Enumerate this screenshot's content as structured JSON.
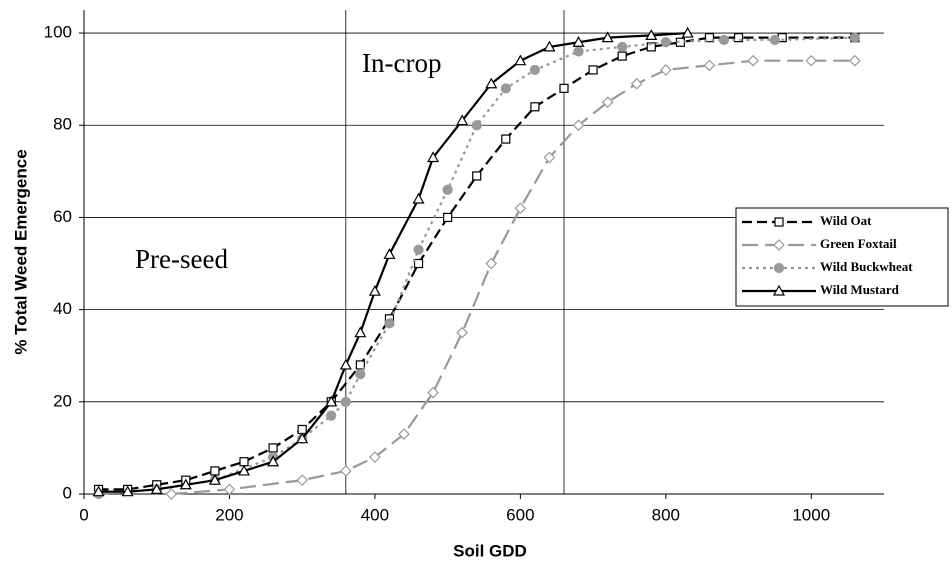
{
  "chart_data": {
    "type": "line",
    "xlabel": "Soil GDD",
    "ylabel": "% Total Weed Emergence",
    "annotations": [
      "In-crop",
      "Pre-seed"
    ],
    "vlines": [
      360,
      660
    ],
    "xlim": [
      0,
      1100
    ],
    "ylim": [
      0,
      105
    ],
    "xticks": [
      0,
      200,
      400,
      600,
      800,
      1000
    ],
    "yticks": [
      0,
      20,
      40,
      60,
      80,
      100
    ],
    "grid": true,
    "legend": "right",
    "series": [
      {
        "name": "Wild Oat",
        "color": "#000000",
        "dash": "dashed",
        "marker": "square",
        "x": [
          20,
          60,
          100,
          140,
          180,
          220,
          260,
          300,
          340,
          380,
          420,
          460,
          500,
          540,
          580,
          620,
          660,
          700,
          740,
          780,
          820,
          860,
          900,
          960,
          1060
        ],
        "values": [
          1,
          1,
          2,
          3,
          5,
          7,
          10,
          14,
          20,
          28,
          38,
          50,
          60,
          69,
          77,
          84,
          88,
          92,
          95,
          97,
          98,
          99,
          99,
          99,
          99
        ]
      },
      {
        "name": "Green Foxtail",
        "color": "#999999",
        "dash": "longdash",
        "marker": "diamond",
        "x": [
          120,
          200,
          300,
          360,
          400,
          440,
          480,
          520,
          560,
          600,
          640,
          680,
          720,
          760,
          800,
          860,
          920,
          1000,
          1060
        ],
        "values": [
          0,
          1,
          3,
          5,
          8,
          13,
          22,
          35,
          50,
          62,
          73,
          80,
          85,
          89,
          92,
          93,
          94,
          94,
          94
        ]
      },
      {
        "name": "Wild Buckwheat",
        "color": "#999999",
        "dash": "dotted",
        "marker": "circle",
        "x": [
          20,
          100,
          180,
          260,
          300,
          340,
          360,
          380,
          420,
          460,
          500,
          540,
          580,
          620,
          680,
          740,
          800,
          880,
          950,
          1060
        ],
        "values": [
          0,
          1,
          3,
          8,
          12,
          17,
          20,
          26,
          37,
          53,
          66,
          80,
          88,
          92,
          96,
          97,
          98,
          98.5,
          98.5,
          99
        ]
      },
      {
        "name": "Wild Mustard",
        "color": "#000000",
        "dash": "solid",
        "marker": "triangle",
        "x": [
          20,
          60,
          100,
          140,
          180,
          220,
          260,
          300,
          340,
          360,
          380,
          400,
          420,
          460,
          480,
          520,
          560,
          600,
          640,
          680,
          720,
          780,
          830
        ],
        "values": [
          0.5,
          0.5,
          1,
          2,
          3,
          5,
          7,
          12,
          20,
          28,
          35,
          44,
          52,
          64,
          73,
          81,
          89,
          94,
          97,
          98,
          99,
          99.5,
          100
        ]
      }
    ]
  }
}
